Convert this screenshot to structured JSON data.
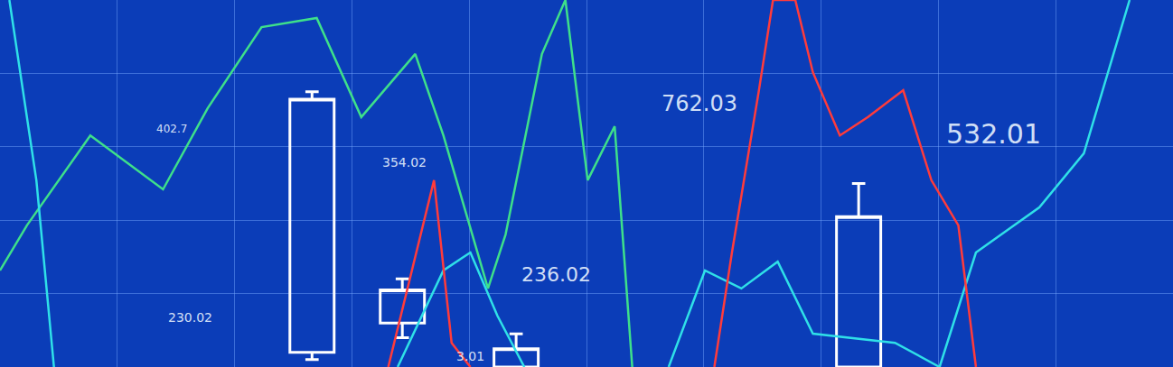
{
  "chart_data": {
    "type": "line",
    "grid": true,
    "tick_labels": false,
    "xlim": [
      0,
      100
    ],
    "ylim": [
      0,
      100
    ],
    "xticks": [
      0,
      10,
      20,
      30,
      40,
      50,
      60,
      70,
      80,
      90,
      100
    ],
    "yticks": [
      0,
      20,
      40,
      60,
      80,
      100
    ],
    "series": [
      {
        "color": "#3ee08a",
        "x": [
          0,
          2.3,
          7.7,
          13.9,
          17.7,
          22.3,
          27,
          30.8,
          35.4,
          37.8,
          41.6,
          43.1,
          46.2,
          48.2,
          50.1,
          52.4,
          53.9
        ],
        "values": [
          26.3,
          38.6,
          63.1,
          48.4,
          70.5,
          92.6,
          95.1,
          68.1,
          85.3,
          63.1,
          21.4,
          36.1,
          85.3,
          100,
          50.9,
          65.6,
          0
        ]
      },
      {
        "color": "#2fe0e8",
        "x": [
          0.8,
          3.1,
          4.6,
          20,
          33.9,
          37.8,
          40.1,
          42.4,
          44.7,
          50,
          57,
          60.1,
          63.2,
          66.3,
          69.3,
          76.3,
          80.1,
          83.2,
          88.6,
          92.4,
          96.3
        ],
        "values": [
          100,
          50.9,
          0,
          null,
          0,
          26.3,
          31.2,
          14,
          0,
          null,
          0,
          26.3,
          21.4,
          28.7,
          9.1,
          6.6,
          0,
          31.2,
          43.5,
          58.2,
          100
        ]
      },
      {
        "color": "#ff3b3b",
        "x": [
          33.1,
          37,
          38.5,
          40.1,
          50,
          60.9,
          62.4,
          64.7,
          65.9,
          67.8,
          69.3,
          71.6,
          74,
          77,
          79.4,
          81.7,
          83.2
        ],
        "values": [
          0,
          50.9,
          6.6,
          0,
          null,
          0,
          31.2,
          75.4,
          100,
          100,
          80.3,
          63.1,
          68.1,
          75.4,
          50.9,
          38.6,
          0
        ]
      }
    ],
    "candles": {
      "color": "#ffffff",
      "x": [
        26.6,
        34.3,
        44,
        73.2
      ],
      "open": [
        4,
        12,
        0,
        0
      ],
      "high": [
        75,
        24,
        9,
        50
      ],
      "low": [
        2,
        8,
        0,
        0
      ],
      "close": [
        73,
        21,
        5,
        41
      ]
    },
    "annotations": [
      {
        "text": "762.03",
        "x": 59.6,
        "y": 71.7
      },
      {
        "text": "532.01",
        "x": 84.7,
        "y": 63.6
      },
      {
        "text": "236.02",
        "x": 47.4,
        "y": 25.1
      },
      {
        "text": "354.02",
        "x": 34.5,
        "y": 55.8
      },
      {
        "text": "402.7",
        "x": 14.6,
        "y": 64.9
      },
      {
        "text": "230.02",
        "x": 16.2,
        "y": 13.5
      },
      {
        "text": "3.01",
        "x": 40.1,
        "y": 3
      }
    ]
  }
}
